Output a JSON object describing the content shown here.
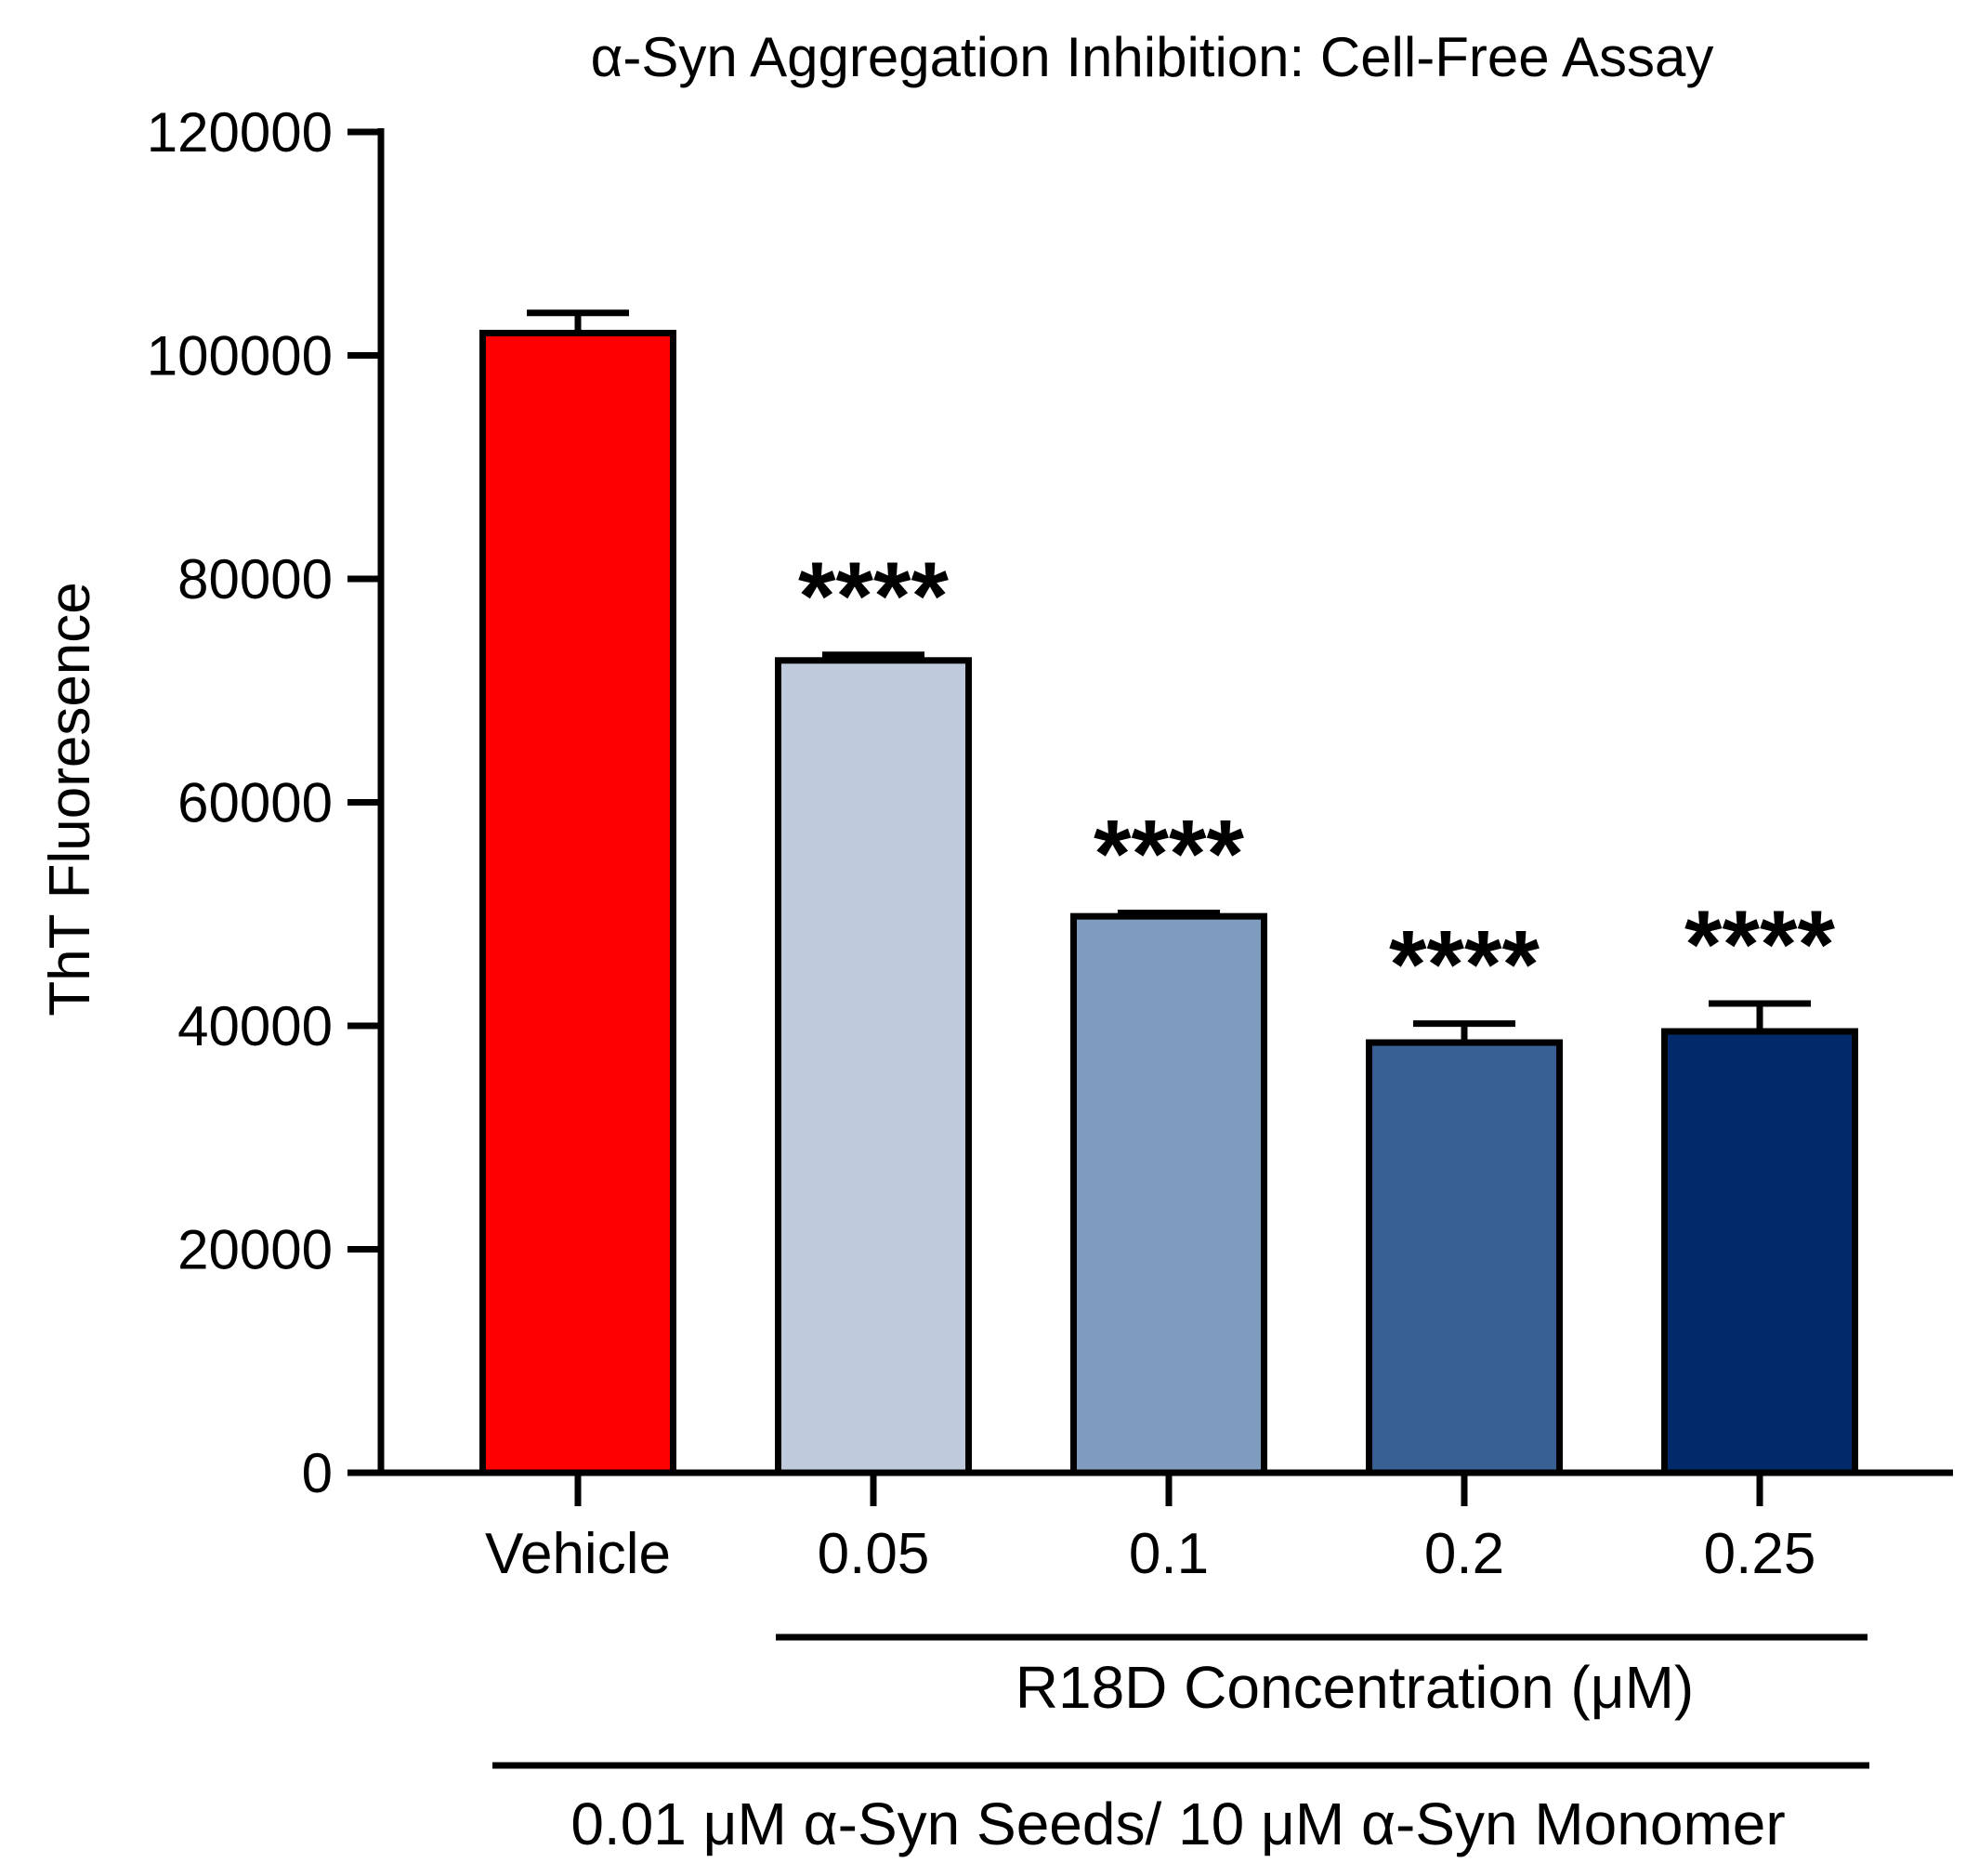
{
  "chart_data": {
    "type": "bar",
    "title": "α-Syn Aggregation Inhibition: Cell-Free Assay",
    "ylabel": "ThT Fluoresence",
    "xlabel": "",
    "ylim": [
      0,
      120000
    ],
    "yticks": [
      0,
      20000,
      40000,
      60000,
      80000,
      100000,
      120000
    ],
    "ytick_labels": [
      "0",
      "20000",
      "40000",
      "60000",
      "80000",
      "100000",
      "120000"
    ],
    "categories": [
      "Vehicle",
      "0.05",
      "0.1",
      "0.2",
      "0.25"
    ],
    "values": [
      102000,
      72700,
      49800,
      38500,
      39500
    ],
    "errors": [
      1800,
      500,
      300,
      1700,
      2500
    ],
    "colors": [
      "#FF0000",
      "#BFCBDC",
      "#7F9BBE",
      "#386092",
      "#022A6A"
    ],
    "significance": [
      "",
      "****",
      "****",
      "****",
      "****"
    ],
    "group_labels": {
      "r18d": "R18D Concentration (μM)",
      "conditions": "0.01 μM α-Syn Seeds/ 10 μM α-Syn Monomer"
    },
    "grid": false,
    "legend": "none"
  }
}
